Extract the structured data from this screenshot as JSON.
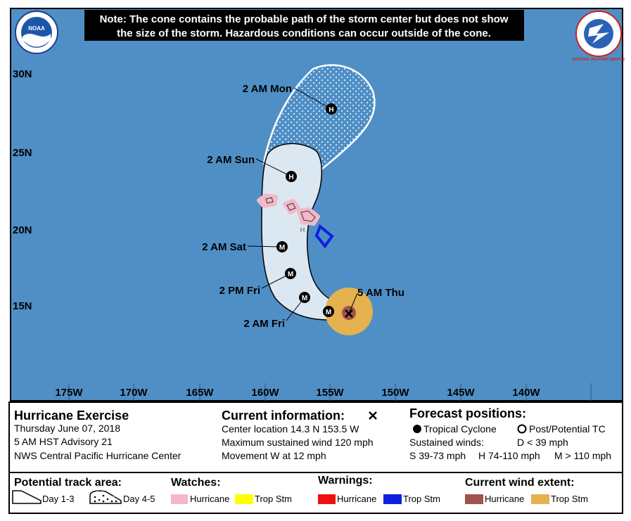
{
  "logos": {
    "left": "NOAA",
    "right": "NATIONAL WEATHER SERVICE"
  },
  "note": [
    "Note: The cone contains the probable path of the storm center but does not show",
    "the size of the storm. Hazardous conditions can occur outside of the cone."
  ],
  "map": {
    "latitudes": [
      "30N",
      "25N",
      "20N",
      "15N"
    ],
    "longitudes": [
      "175W",
      "170W",
      "165W",
      "160W",
      "155W",
      "150W",
      "145W",
      "140W"
    ],
    "forecast_points": [
      {
        "label": "2 AM Mon",
        "intensity": "H"
      },
      {
        "label": "2 AM Sun",
        "intensity": "H"
      },
      {
        "label": "2 AM Sat",
        "intensity": "M"
      },
      {
        "label": "2 PM Fri",
        "intensity": "M"
      },
      {
        "label": "2 AM Fri",
        "intensity": "M"
      },
      {
        "label": "5 AM Thu",
        "intensity": "M"
      }
    ],
    "island_marker": "H"
  },
  "info": {
    "title": "Hurricane Exercise",
    "date": "Thursday June 07, 2018",
    "advisory": "5 AM HST Advisory 21",
    "center": "NWS Central Pacific Hurricane Center",
    "current": {
      "heading": "Current information:",
      "lines": [
        "Center location 14.3 N 153.5 W",
        "Maximum sustained wind 120 mph",
        "Movement W at 12 mph"
      ]
    },
    "forecast": {
      "heading": "Forecast positions:",
      "tropical": "Tropical Cyclone",
      "post": "Post/Potential TC",
      "winds": "Sustained winds:",
      "d": "D < 39 mph",
      "s": "S 39-73 mph",
      "h": "H 74-110 mph",
      "m": "M > 110 mph"
    }
  },
  "legend": {
    "track": {
      "heading": "Potential track area:",
      "day13": "Day 1-3",
      "day45": "Day 4-5"
    },
    "watches": {
      "heading": "Watches:",
      "hurricane": "Hurricane",
      "trop": "Trop Stm"
    },
    "warnings": {
      "heading": "Warnings:",
      "hurricane": "Hurricane",
      "trop": "Trop Stm"
    },
    "wind": {
      "heading": "Current wind extent:",
      "hurricane": "Hurricane",
      "trop": "Trop Stm"
    }
  }
}
